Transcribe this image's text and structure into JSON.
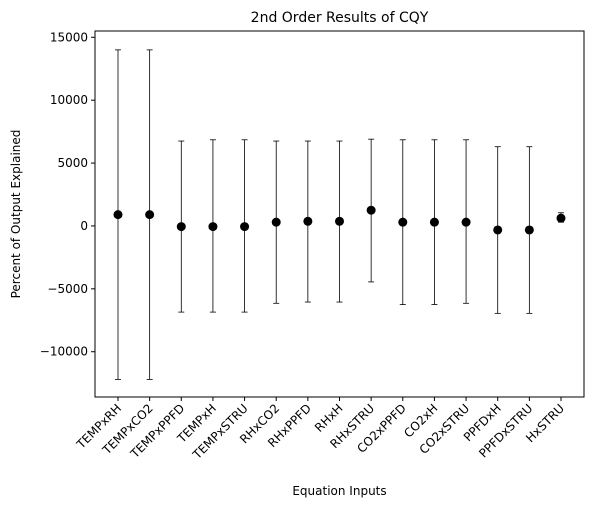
{
  "chart_data": {
    "type": "scatter",
    "title": "2nd Order Results of CQY",
    "xlabel": "Equation Inputs",
    "ylabel": "Percent of Output Explained",
    "categories": [
      "TEMPxRH",
      "TEMPxCO2",
      "TEMPxPPFD",
      "TEMPxH",
      "TEMPxSTRU",
      "RHxCO2",
      "RHxPPFD",
      "RHxH",
      "RHxSTRU",
      "CO2xPPFD",
      "CO2xH",
      "CO2xSTRU",
      "PPFDxH",
      "PPFDxSTRU",
      "HxSTRU"
    ],
    "values": [
      900,
      900,
      -50,
      -50,
      -50,
      300,
      370,
      370,
      1250,
      300,
      300,
      300,
      -320,
      -320,
      620
    ],
    "error_low": [
      -12200,
      -12200,
      -6850,
      -6850,
      -6850,
      -6150,
      -6050,
      -6050,
      -4450,
      -6250,
      -6250,
      -6150,
      -6950,
      -6950,
      300
    ],
    "error_high": [
      14000,
      14000,
      6750,
      6850,
      6850,
      6750,
      6750,
      6750,
      6900,
      6850,
      6850,
      6850,
      6300,
      6300,
      1050
    ],
    "ylim": [
      -13600,
      15500
    ],
    "yticks": [
      -10000,
      -5000,
      0,
      5000,
      10000,
      15000
    ],
    "ytick_labels": [
      "−10000",
      "−5000",
      "0",
      "5000",
      "10000",
      "15000"
    ],
    "grid": false,
    "marker_color": "#000000"
  }
}
